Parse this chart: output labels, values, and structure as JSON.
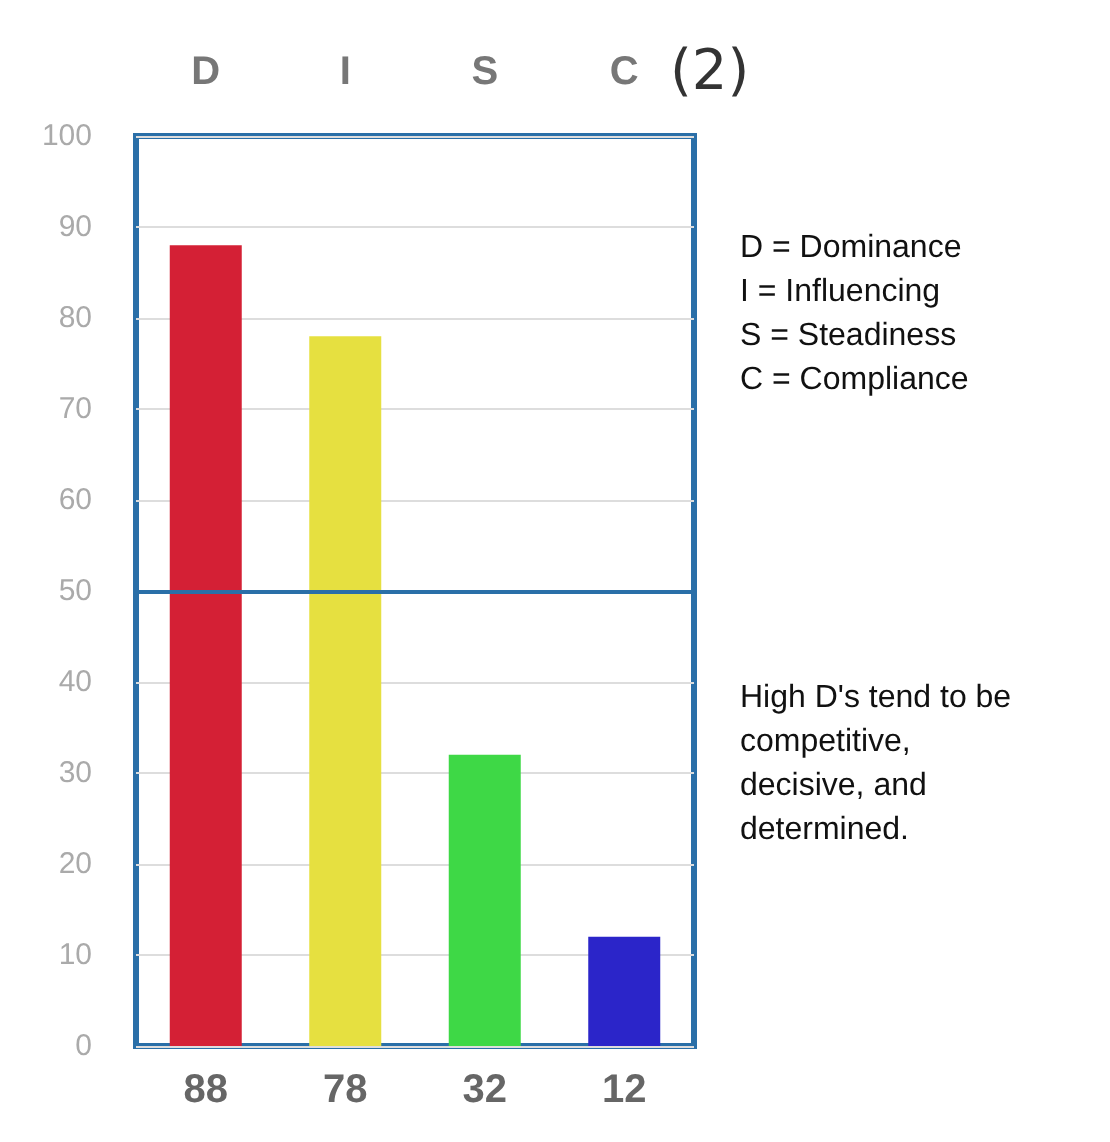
{
  "chart_data": {
    "type": "bar",
    "title": "(2)",
    "categories": [
      "D",
      "I",
      "S",
      "C"
    ],
    "values": [
      88,
      78,
      32,
      12
    ],
    "colors": [
      "#d42035",
      "#e6e040",
      "#3ed846",
      "#2b25c9"
    ],
    "ylim": [
      0,
      100
    ],
    "yticks": [
      0,
      10,
      20,
      30,
      40,
      50,
      60,
      70,
      80,
      90,
      100
    ],
    "grid": "y",
    "data_labels": true,
    "ref_lines": [
      {
        "axis": "y",
        "value": 50,
        "color": "#2a6fa8"
      }
    ],
    "annotations": [
      "D = Dominance\nI = Influencing\nS = Steadiness\nC = Compliance",
      "High D's tend to be\ncompetitive,\ndecisive, and\ndetermined."
    ]
  }
}
